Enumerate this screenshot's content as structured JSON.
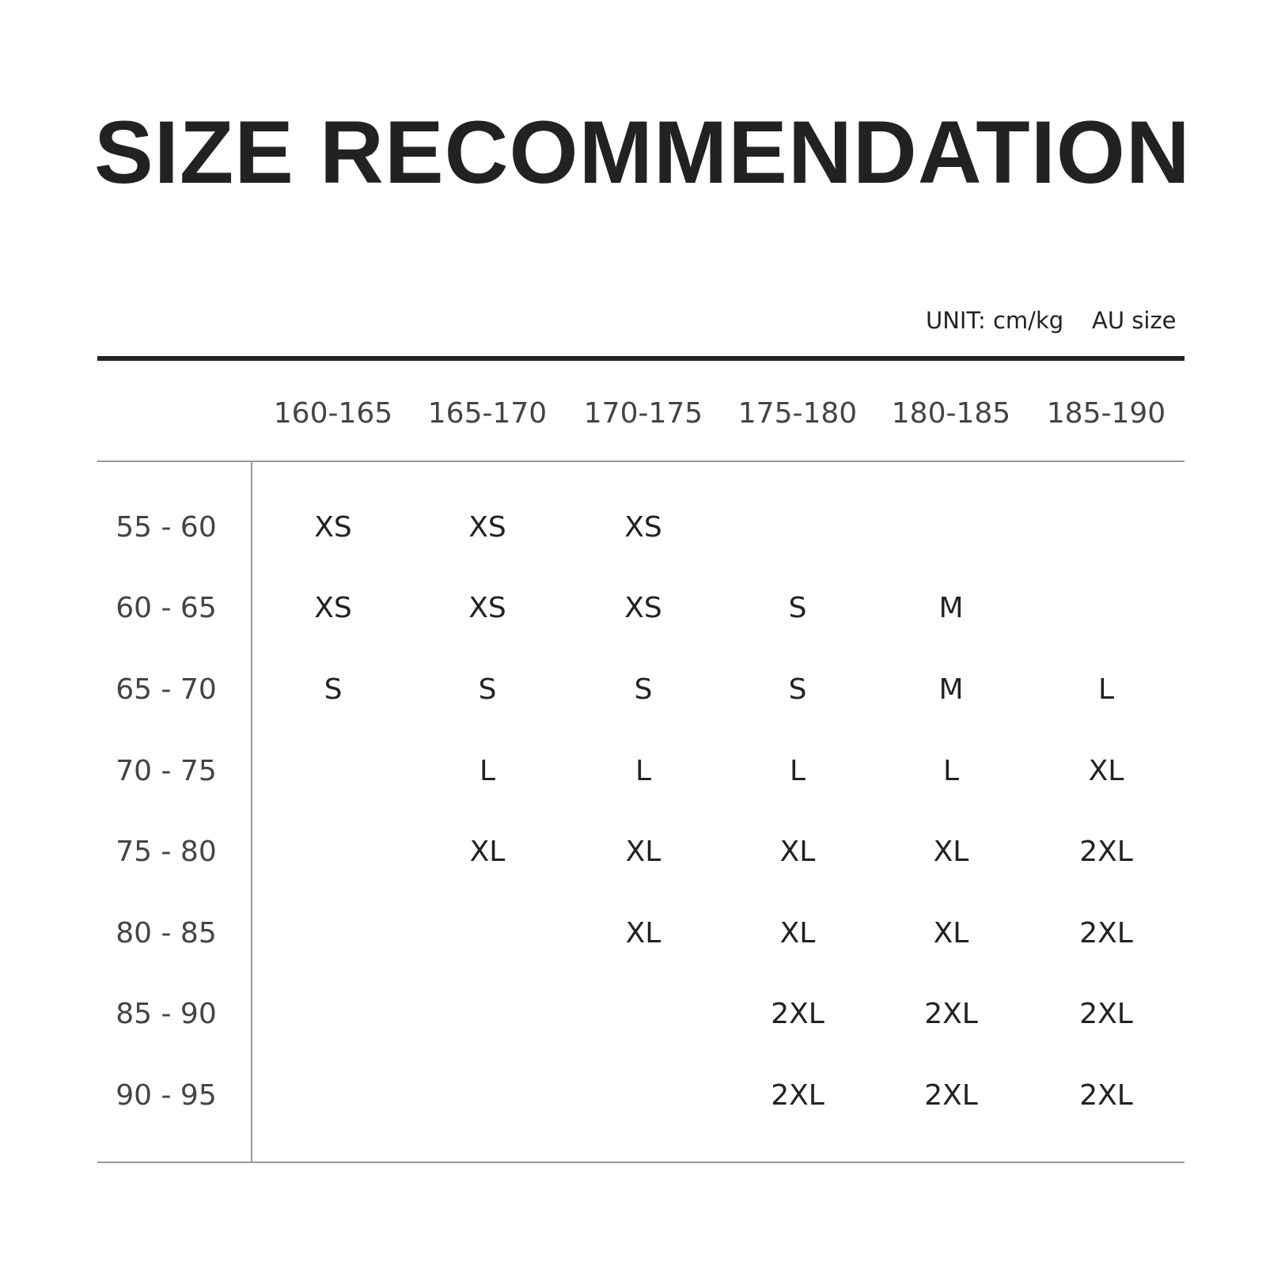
{
  "title": "SIZE RECOMMENDATION",
  "unit_label": "UNIT: cm/kg",
  "size_system": "AU size",
  "height_ranges": [
    "160-165",
    "165-170",
    "170-175",
    "175-180",
    "180-185",
    "185-190"
  ],
  "rows": [
    {
      "weight": "55 - 60",
      "sizes": [
        "XS",
        "XS",
        "XS",
        "",
        "",
        ""
      ]
    },
    {
      "weight": "60 - 65",
      "sizes": [
        "XS",
        "XS",
        "XS",
        "S",
        "M",
        ""
      ]
    },
    {
      "weight": "65 - 70",
      "sizes": [
        "S",
        "S",
        "S",
        "S",
        "M",
        "L"
      ]
    },
    {
      "weight": "70 - 75",
      "sizes": [
        "",
        "L",
        "L",
        "L",
        "L",
        "XL"
      ]
    },
    {
      "weight": "75 - 80",
      "sizes": [
        "",
        "XL",
        "XL",
        "XL",
        "XL",
        "2XL"
      ]
    },
    {
      "weight": "80 - 85",
      "sizes": [
        "",
        "",
        "XL",
        "XL",
        "XL",
        "2XL"
      ]
    },
    {
      "weight": "85 - 90",
      "sizes": [
        "",
        "",
        "",
        "2XL",
        "2XL",
        "2XL"
      ]
    },
    {
      "weight": "90 - 95",
      "sizes": [
        "",
        "",
        "",
        "2XL",
        "2XL",
        "2XL"
      ]
    }
  ]
}
